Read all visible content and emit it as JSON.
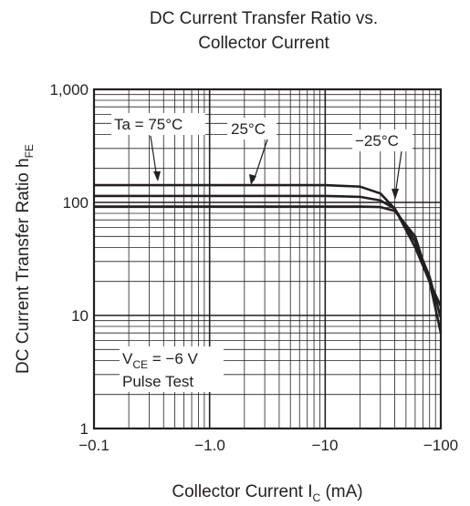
{
  "chart_data": {
    "type": "line",
    "title_line1": "DC Current Transfer Ratio vs.",
    "title_line2": "Collector Current",
    "xlabel_main": "Collector Current  I",
    "xlabel_sub": "C",
    "xlabel_unit": "  (mA)",
    "ylabel_main": "DC Current Transfer Ratio  h",
    "ylabel_sub": "FE",
    "x_scale": "log",
    "y_scale": "log",
    "x_magnitude_range": [
      0.1,
      100
    ],
    "ylim": [
      1,
      1000
    ],
    "grid": true,
    "x_tick_labels": [
      "−0.1",
      "−1.0",
      "−10",
      "−100"
    ],
    "y_tick_labels": [
      "1",
      "10",
      "100",
      "1,000"
    ],
    "y_tick_values": [
      1,
      10,
      100,
      1000
    ],
    "conditions": {
      "vce_main": "V",
      "vce_sub": "CE",
      "vce_value": " = −6 V",
      "pulse": "Pulse Test"
    },
    "series": [
      {
        "name": "Ta = 75°C",
        "color": "#231f20",
        "points": [
          [
            0.1,
            142
          ],
          [
            1,
            142
          ],
          [
            10,
            142
          ],
          [
            20,
            138
          ],
          [
            30,
            120
          ],
          [
            40,
            88
          ],
          [
            60,
            40
          ],
          [
            80,
            20
          ],
          [
            100,
            12
          ]
        ]
      },
      {
        "name": "25°C",
        "color": "#231f20",
        "points": [
          [
            0.1,
            114
          ],
          [
            1,
            114
          ],
          [
            10,
            114
          ],
          [
            20,
            112
          ],
          [
            30,
            104
          ],
          [
            40,
            88
          ],
          [
            60,
            45
          ],
          [
            80,
            22
          ],
          [
            100,
            9.5
          ]
        ]
      },
      {
        "name": "−25°C",
        "color": "#231f20",
        "points": [
          [
            0.1,
            92
          ],
          [
            1,
            92
          ],
          [
            10,
            92
          ],
          [
            20,
            92
          ],
          [
            30,
            91
          ],
          [
            40,
            84
          ],
          [
            60,
            50
          ],
          [
            80,
            20
          ],
          [
            100,
            7
          ]
        ]
      }
    ]
  }
}
